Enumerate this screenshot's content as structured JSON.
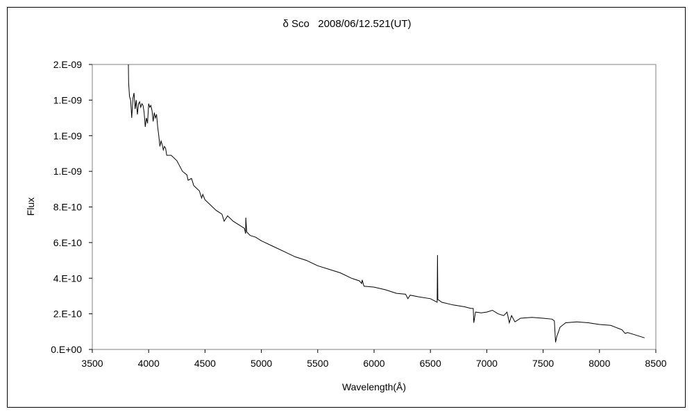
{
  "chart_data": {
    "type": "line",
    "title": "δ Sco   2008/06/12.521(UT)",
    "xlabel": "Wavelength(Å)",
    "ylabel": "Flux",
    "xlim": [
      3500,
      8500
    ],
    "ylim": [
      0,
      1.6e-09
    ],
    "x_ticks": [
      3500,
      4000,
      4500,
      5000,
      5500,
      6000,
      6500,
      7000,
      7500,
      8000,
      8500
    ],
    "y_ticks": [
      0,
      2e-10,
      4e-10,
      6e-10,
      8e-10,
      1e-09,
      1.2e-09,
      1.4e-09,
      1.6e-09
    ],
    "y_tick_labels": [
      "0.E+00",
      "2.E-10",
      "4.E-10",
      "6.E-10",
      "8.E-10",
      "1.E-09",
      "1.E-09",
      "1.E-09",
      "2.E-09"
    ],
    "grid": false,
    "legend": "none",
    "series": [
      {
        "color": "#000000",
        "x": [
          3820,
          3822,
          3830,
          3840,
          3850,
          3860,
          3870,
          3880,
          3890,
          3900,
          3910,
          3920,
          3930,
          3940,
          3950,
          3960,
          3970,
          3980,
          3990,
          4000,
          4010,
          4020,
          4030,
          4040,
          4050,
          4060,
          4070,
          4080,
          4090,
          4100,
          4110,
          4120,
          4130,
          4140,
          4150,
          4160,
          4200,
          4250,
          4300,
          4340,
          4350,
          4380,
          4400,
          4450,
          4470,
          4480,
          4500,
          4550,
          4600,
          4650,
          4670,
          4700,
          4750,
          4800,
          4850,
          4860,
          4862,
          4870,
          4900,
          4950,
          5000,
          5100,
          5200,
          5300,
          5400,
          5500,
          5600,
          5700,
          5800,
          5870,
          5890,
          5895,
          5910,
          6000,
          6100,
          6200,
          6280,
          6300,
          6320,
          6400,
          6500,
          6560,
          6563,
          6566,
          6580,
          6600,
          6700,
          6800,
          6860,
          6880,
          6885,
          6900,
          6950,
          7000,
          7050,
          7100,
          7150,
          7180,
          7200,
          7220,
          7250,
          7300,
          7400,
          7500,
          7580,
          7600,
          7610,
          7620,
          7650,
          7700,
          7800,
          7900,
          8000,
          8100,
          8200,
          8227,
          8250,
          8300,
          8350,
          8400
        ],
        "y": [
          1.6e-09,
          1.5e-09,
          1.42e-09,
          1.4e-09,
          1.3e-09,
          1.41e-09,
          1.44e-09,
          1.35e-09,
          1.4e-09,
          1.32e-09,
          1.38e-09,
          1.39e-09,
          1.36e-09,
          1.38e-09,
          1.37e-09,
          1.33e-09,
          1.25e-09,
          1.3e-09,
          1.27e-09,
          1.38e-09,
          1.36e-09,
          1.37e-09,
          1.34e-09,
          1.28e-09,
          1.33e-09,
          1.3e-09,
          1.32e-09,
          1.25e-09,
          1.2e-09,
          1.14e-09,
          1.17e-09,
          1.15e-09,
          1.12e-09,
          1.14e-09,
          1.13e-09,
          1.09e-09,
          1.09e-09,
          1.06e-09,
          1e-09,
          9.8e-10,
          9.5e-10,
          9.6e-10,
          9.2e-10,
          8.9e-10,
          8.5e-10,
          8.7e-10,
          8.4e-10,
          8.1e-10,
          7.8e-10,
          7.6e-10,
          7.2e-10,
          7.5e-10,
          7.2e-10,
          7e-10,
          6.8e-10,
          6.5e-10,
          7.4e-10,
          6.6e-10,
          6.4e-10,
          6.3e-10,
          6.1e-10,
          5.8e-10,
          5.5e-10,
          5.2e-10,
          5e-10,
          4.7e-10,
          4.5e-10,
          4.3e-10,
          4e-10,
          3.85e-10,
          3.7e-10,
          3.9e-10,
          3.55e-10,
          3.5e-10,
          3.35e-10,
          3.15e-10,
          3.1e-10,
          2.85e-10,
          3.05e-10,
          2.95e-10,
          2.85e-10,
          2.65e-10,
          5.3e-10,
          2.8e-10,
          2.75e-10,
          2.65e-10,
          2.5e-10,
          2.4e-10,
          2.3e-10,
          2.3e-10,
          1.5e-10,
          2.1e-10,
          2.05e-10,
          2.1e-10,
          2.2e-10,
          2e-10,
          1.9e-10,
          2.1e-10,
          1.5e-10,
          1.9e-10,
          1.55e-10,
          1.75e-10,
          1.8e-10,
          1.75e-10,
          1.7e-10,
          1.6e-10,
          4e-11,
          7e-11,
          1.25e-10,
          1.5e-10,
          1.55e-10,
          1.5e-10,
          1.4e-10,
          1.35e-10,
          1.1e-10,
          9e-11,
          9.5e-11,
          8.5e-11,
          7.5e-11,
          6.5e-11
        ]
      }
    ]
  }
}
